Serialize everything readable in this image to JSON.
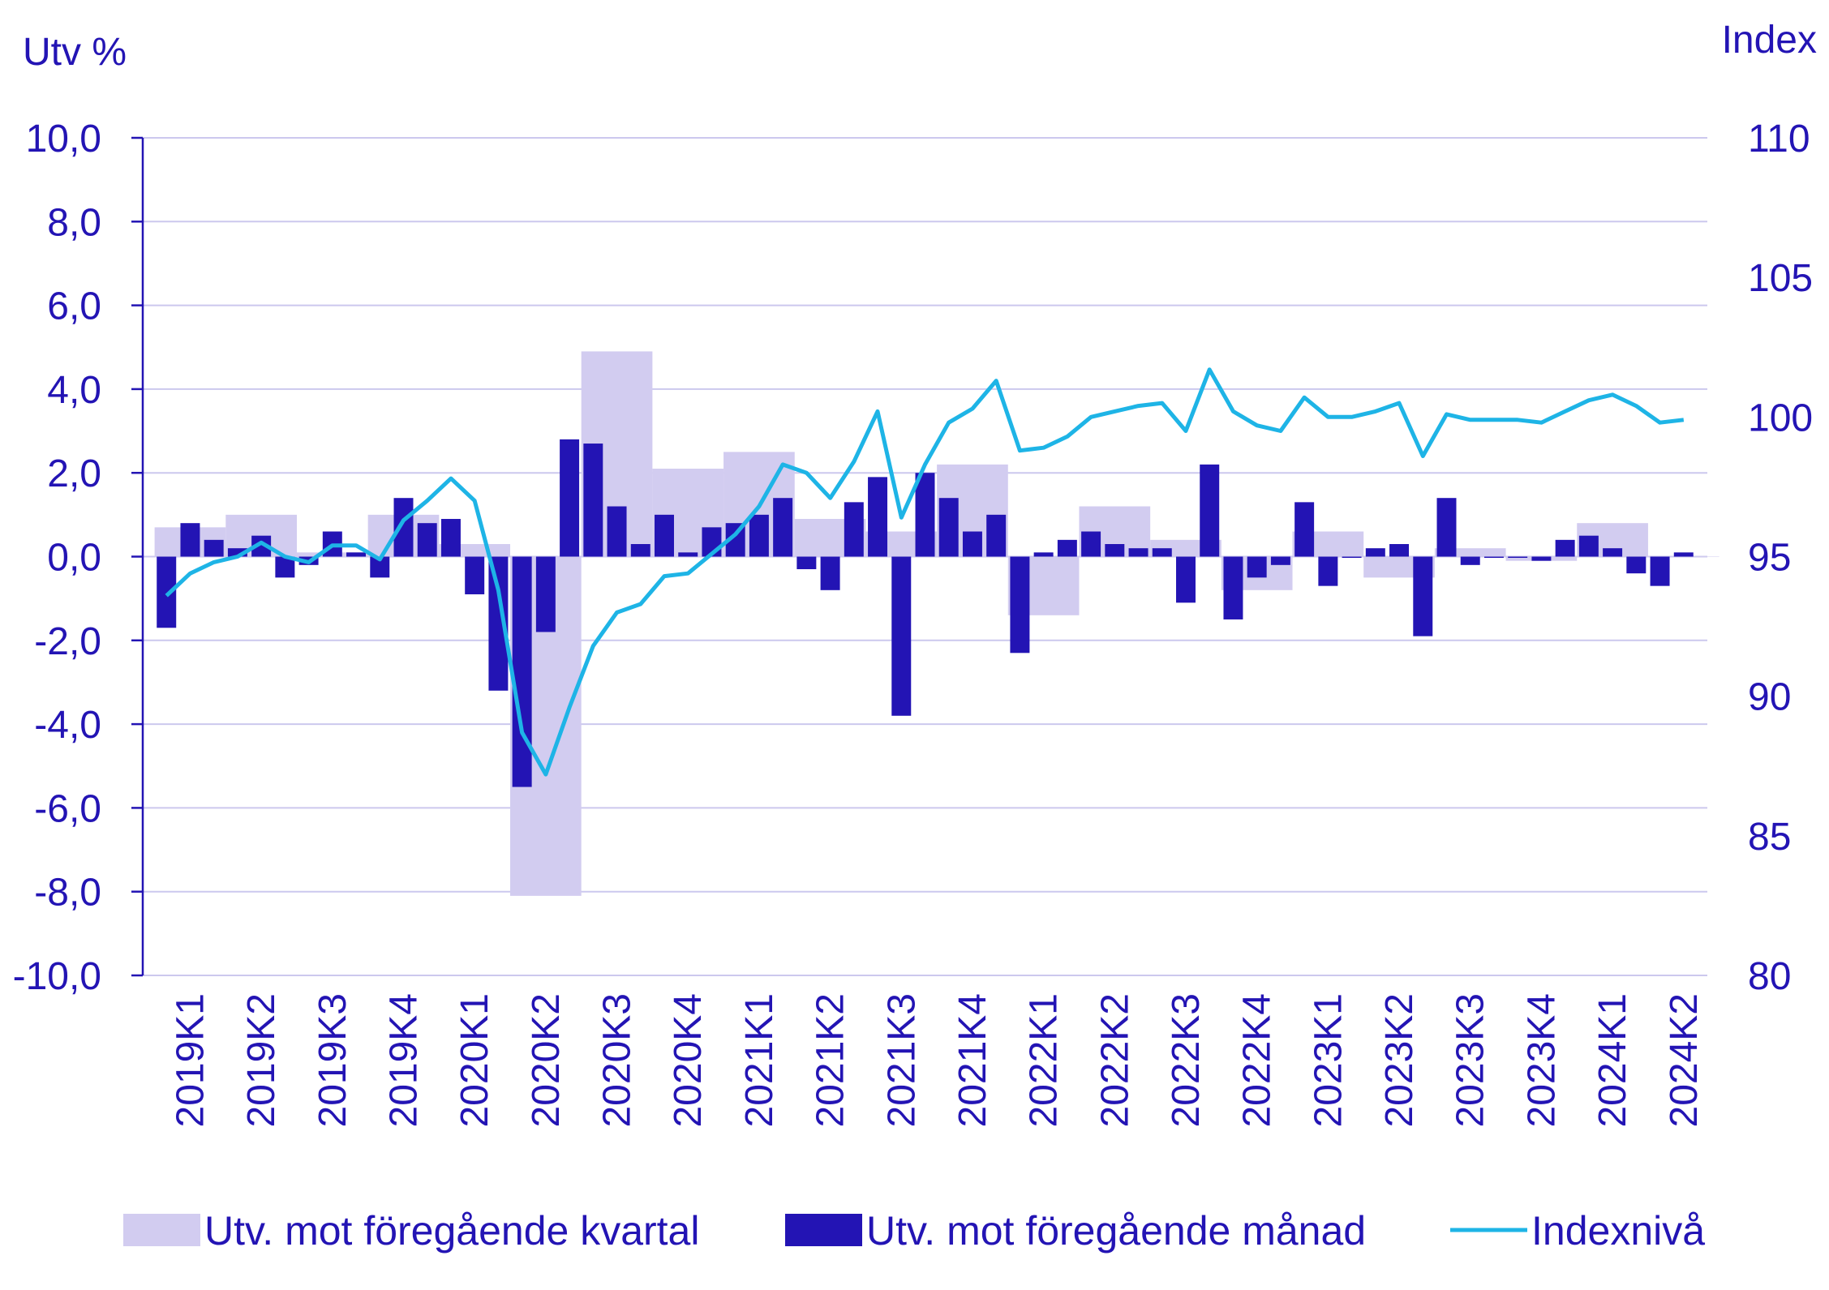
{
  "chart_data": {
    "type": "bar",
    "left_axis_title": "Utv %",
    "right_axis_title": "Index",
    "y_left": {
      "min": -10,
      "max": 10,
      "ticks": [
        "10,0",
        "8,0",
        "6,0",
        "4,0",
        "2,0",
        "0,0",
        "-2,0",
        "-4,0",
        "-6,0",
        "-8,0",
        "-10,0"
      ]
    },
    "y_right": {
      "min": 80,
      "max": 110,
      "ticks": [
        "110",
        "105",
        "100",
        "95",
        "90",
        "85",
        "80"
      ]
    },
    "grid": true,
    "quarters": [
      "2019K1",
      "2019K2",
      "2019K3",
      "2019K4",
      "2020K1",
      "2020K2",
      "2020K3",
      "2020K4",
      "2021K1",
      "2021K2",
      "2021K3",
      "2021K4",
      "2022K1",
      "2022K2",
      "2022K3",
      "2022K4",
      "2023K1",
      "2023K2",
      "2023K3",
      "2023K4",
      "2024K1",
      "2024K2"
    ],
    "series": [
      {
        "name": "Utv. mot föregående kvartal",
        "kind": "bar-wide",
        "color": "#d2ccf0",
        "values": [
          0.7,
          1.0,
          0.1,
          1.0,
          0.3,
          -8.1,
          4.9,
          2.1,
          2.5,
          0.9,
          0.6,
          2.2,
          -1.4,
          1.2,
          0.4,
          -0.8,
          0.6,
          -0.5,
          0.2,
          -0.1,
          0.8,
          0.0
        ]
      },
      {
        "name": "Utv. mot föregående månad",
        "kind": "bar-narrow",
        "color": "#2314b4",
        "values": [
          -1.7,
          0.8,
          0.4,
          0.2,
          0.5,
          -0.5,
          -0.2,
          0.6,
          0.1,
          -0.5,
          1.4,
          0.8,
          0.9,
          -0.9,
          -3.2,
          -5.5,
          -1.8,
          2.8,
          2.7,
          1.2,
          0.3,
          1.0,
          0.1,
          0.7,
          0.8,
          1.0,
          1.4,
          -0.3,
          -0.8,
          1.3,
          1.9,
          -3.8,
          2.0,
          1.4,
          0.6,
          1.0,
          -2.3,
          0.1,
          0.4,
          0.6,
          0.3,
          0.2,
          0.2,
          -1.1,
          2.2,
          -1.5,
          -0.5,
          -0.2,
          1.3,
          -0.7,
          0.0,
          0.2,
          0.3,
          -1.9,
          1.4,
          -0.2,
          0.0,
          0.0,
          -0.1,
          0.4,
          0.5,
          0.2,
          -0.4,
          -0.7,
          0.1
        ]
      },
      {
        "name": "Indexnivå",
        "kind": "line",
        "color": "#1eb4e6",
        "values": [
          93.6,
          94.4,
          94.8,
          95.0,
          95.5,
          95.0,
          94.8,
          95.4,
          95.4,
          94.9,
          96.3,
          97.0,
          97.8,
          97.0,
          93.8,
          88.7,
          87.2,
          89.6,
          91.8,
          93.0,
          93.3,
          94.3,
          94.4,
          95.1,
          95.8,
          96.8,
          98.3,
          98.0,
          97.1,
          98.4,
          100.2,
          96.4,
          98.3,
          99.8,
          100.3,
          101.3,
          98.8,
          98.9,
          99.3,
          100.0,
          100.2,
          100.4,
          100.5,
          99.5,
          101.7,
          100.2,
          99.7,
          99.5,
          100.7,
          100.0,
          100.0,
          100.2,
          100.5,
          98.6,
          100.1,
          99.9,
          99.9,
          99.9,
          99.8,
          100.2,
          100.6,
          100.8,
          100.4,
          99.8,
          99.9
        ]
      }
    ],
    "legend": {
      "position": "bottom",
      "items": [
        {
          "label": "Utv. mot föregående kvartal",
          "swatch": "box-light"
        },
        {
          "label": "Utv. mot föregående månad",
          "swatch": "box-dark"
        },
        {
          "label": "Indexnivå",
          "swatch": "line"
        }
      ]
    }
  },
  "colors": {
    "text": "#2314b4",
    "grid": "#ccc8ee",
    "axis": "#2314b4"
  }
}
